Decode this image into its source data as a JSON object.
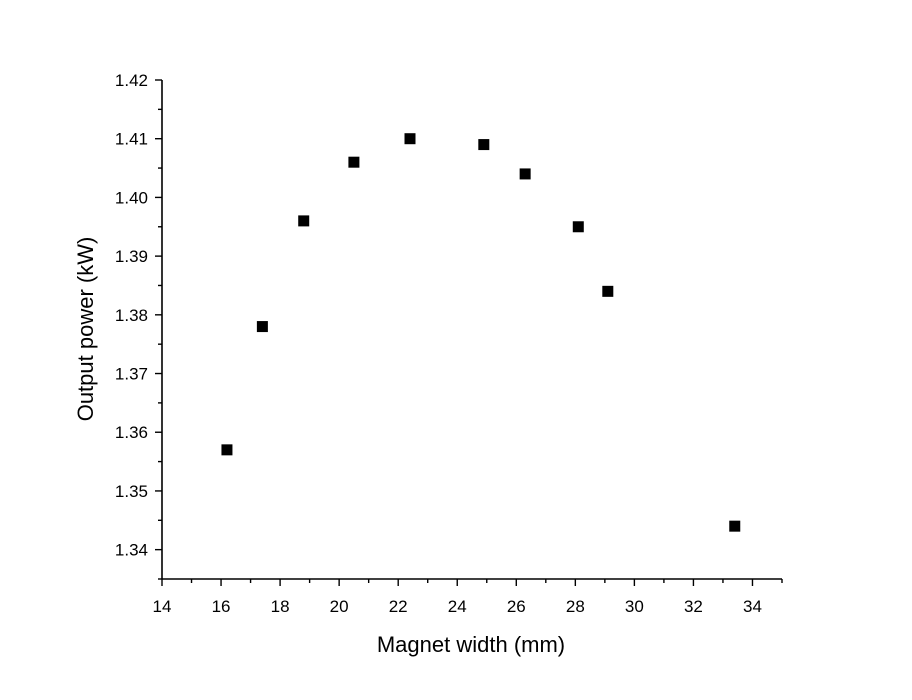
{
  "chart_data": {
    "type": "scatter",
    "title": "",
    "xlabel": "Magnet width (mm)",
    "ylabel": "Output power (kW)",
    "xlim": [
      14,
      35
    ],
    "ylim": [
      1.335,
      1.42
    ],
    "x_ticks": [
      "14",
      "16",
      "18",
      "20",
      "22",
      "24",
      "26",
      "28",
      "30",
      "32",
      "34"
    ],
    "y_ticks": [
      "1.34",
      "1.35",
      "1.36",
      "1.37",
      "1.38",
      "1.39",
      "1.40",
      "1.41",
      "1.42"
    ],
    "grid": false,
    "marker": "square",
    "marker_color": "#000000",
    "series": [
      {
        "x": [
          16.2,
          17.4,
          18.8,
          20.5,
          22.4,
          24.9,
          26.3,
          28.1,
          29.1,
          33.4
        ],
        "y": [
          1.357,
          1.378,
          1.396,
          1.406,
          1.41,
          1.409,
          1.404,
          1.395,
          1.384,
          1.344
        ]
      }
    ]
  }
}
